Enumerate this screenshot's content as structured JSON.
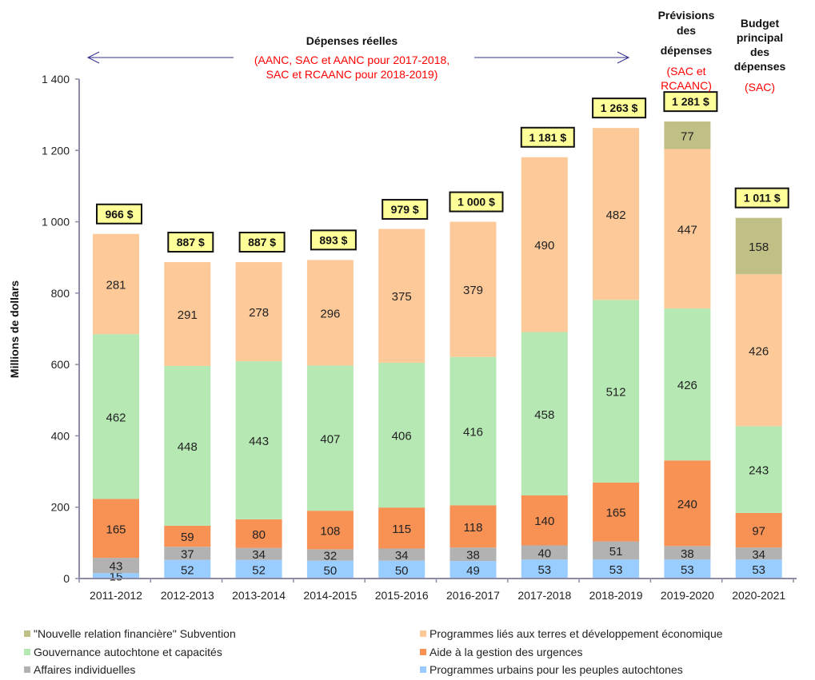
{
  "chart_data": {
    "type": "bar",
    "stacked": true,
    "title": "",
    "xlabel": "",
    "ylabel": "Millions  de dollars",
    "ylim": [
      0,
      1400
    ],
    "yticks": [
      0,
      200,
      400,
      600,
      800,
      1000,
      1200,
      1400
    ],
    "ytick_labels": [
      "0",
      "200",
      "400",
      "600",
      "800",
      "1 000",
      "1 200",
      "1 400"
    ],
    "grid": false,
    "legend_position": "bottom",
    "categories": [
      "2011-2012",
      "2012-2013",
      "2013-2014",
      "2014-2015",
      "2015-2016",
      "2016-2017",
      "2017-2018",
      "2018-2019",
      "2019-2020",
      "2020-2021"
    ],
    "series": [
      {
        "name": "Programmes urbains pour les peuples autochtones",
        "color": "#99ccff",
        "values": [
          15,
          52,
          52,
          50,
          50,
          49,
          53,
          53,
          53,
          53
        ]
      },
      {
        "name": "Affaires individuelles",
        "color": "#b2b2b2",
        "values": [
          43,
          37,
          34,
          32,
          34,
          38,
          40,
          51,
          38,
          34
        ]
      },
      {
        "name": "Aide à la gestion des urgences",
        "color": "#f79154",
        "values": [
          165,
          59,
          80,
          108,
          115,
          118,
          140,
          165,
          240,
          97
        ]
      },
      {
        "name": "Gouvernance autochtone et capacités",
        "color": "#b6e8b4",
        "values": [
          462,
          448,
          443,
          407,
          406,
          416,
          458,
          512,
          426,
          243
        ]
      },
      {
        "name": "Programmes liés aux terres et développement économique",
        "color": "#fdc998",
        "values": [
          281,
          291,
          278,
          296,
          375,
          379,
          490,
          482,
          447,
          426
        ]
      },
      {
        "name": "\"Nouvelle relation financière\" Subvention",
        "color": "#c0bf85",
        "values": [
          0,
          0,
          0,
          0,
          0,
          0,
          0,
          0,
          77,
          158
        ]
      }
    ],
    "totals": [
      966,
      887,
      887,
      893,
      979,
      1000,
      1181,
      1263,
      1281,
      1011
    ],
    "total_labels": [
      "966 $",
      "887 $",
      "887 $",
      "893 $",
      "979 $",
      "1 000 $",
      "1 181 $",
      "1 263 $",
      "1 281 $",
      "1 011 $"
    ],
    "annotations": {
      "actual": {
        "title": "Dépenses  réelles",
        "note": "(AANC, SAC et AANC pour 2017-2018, SAC et RCAANC pour 2018-2019)"
      },
      "forecast": {
        "title_lines": [
          "Prévisions",
          "des",
          "dépenses"
        ],
        "note_lines": [
          "(SAC et",
          "RCAANC)"
        ]
      },
      "budget": {
        "title_lines": [
          "Budget",
          "principal",
          "des",
          "dépenses"
        ],
        "note": "(SAC)"
      }
    },
    "legend": [
      {
        "label": "\"Nouvelle relation financière\" Subvention",
        "color": "#c0bf85"
      },
      {
        "label": "Programmes liés aux terres et développement économique",
        "color": "#fdc998"
      },
      {
        "label": "Gouvernance autochtone et capacités",
        "color": "#b6e8b4"
      },
      {
        "label": "Aide à la gestion des urgences",
        "color": "#f79154"
      },
      {
        "label": "Affaires individuelles",
        "color": "#b2b2b2"
      },
      {
        "label": "Programmes urbains pour les peuples autochtones",
        "color": "#99ccff"
      }
    ],
    "colors": {
      "total_box_fill": "#ffff99",
      "axis": "#8c8ca6",
      "arrow": "#2e3192",
      "note_red": "#ff0000"
    }
  }
}
